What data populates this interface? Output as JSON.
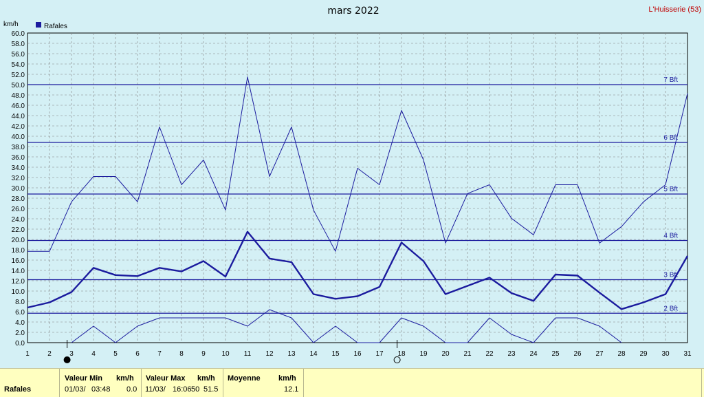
{
  "title": "mars 2022",
  "station": "L'Huisserie (53)",
  "colors": {
    "background": "#d4f0f5",
    "line": "#1b1b9e",
    "grid": "#808080",
    "station": "#c00000",
    "summary_bg": "#ffffc0"
  },
  "icons": [
    "new-moon-icon",
    "full-moon-icon"
  ],
  "chart_data": {
    "type": "line",
    "title": "mars 2022",
    "ylabel": "km/h",
    "xlabel": "",
    "ylim": [
      0,
      60
    ],
    "ytick_step": 2,
    "yticks": [
      "0.0",
      "2.0",
      "4.0",
      "6.0",
      "8.0",
      "10.0",
      "12.0",
      "14.0",
      "16.0",
      "18.0",
      "20.0",
      "22.0",
      "24.0",
      "26.0",
      "28.0",
      "30.0",
      "32.0",
      "34.0",
      "36.0",
      "38.0",
      "40.0",
      "42.0",
      "44.0",
      "46.0",
      "48.0",
      "50.0",
      "52.0",
      "54.0",
      "56.0",
      "58.0",
      "60.0"
    ],
    "x": [
      1,
      2,
      3,
      4,
      5,
      6,
      7,
      8,
      9,
      10,
      11,
      12,
      13,
      14,
      15,
      16,
      17,
      18,
      19,
      20,
      21,
      22,
      23,
      24,
      25,
      26,
      27,
      28,
      29,
      30,
      31
    ],
    "xlim": [
      1,
      31
    ],
    "grid": true,
    "legend": {
      "label": "Rafales",
      "placement": "top-left"
    },
    "series": [
      {
        "name": "Rafales",
        "style": "bold",
        "values": [
          6.8,
          7.8,
          9.8,
          14.5,
          13.1,
          12.9,
          14.5,
          13.8,
          15.8,
          12.8,
          21.5,
          16.3,
          15.6,
          9.4,
          8.5,
          9.0,
          10.8,
          19.4,
          15.8,
          9.4,
          11.0,
          12.6,
          9.6,
          8.1,
          13.2,
          13.0,
          9.7,
          6.5,
          7.8,
          9.4,
          16.8
        ]
      },
      {
        "style": "thin",
        "values": [
          17.7,
          17.7,
          27.3,
          32.2,
          32.2,
          27.3,
          41.8,
          30.6,
          35.4,
          25.7,
          51.5,
          32.2,
          41.8,
          25.7,
          17.7,
          33.8,
          30.6,
          45.0,
          35.4,
          19.3,
          28.9,
          30.6,
          24.1,
          20.9,
          30.6,
          30.6,
          19.3,
          22.5,
          27.3,
          30.6,
          48.3
        ]
      },
      {
        "style": "thin",
        "values": [
          null,
          null,
          0,
          3.2,
          0,
          3.2,
          4.8,
          4.8,
          4.8,
          4.8,
          3.2,
          6.4,
          4.8,
          0,
          3.2,
          0,
          0,
          4.8,
          3.2,
          0,
          0,
          4.8,
          1.6,
          0,
          4.8,
          4.8,
          3.2,
          0,
          null,
          null,
          null
        ]
      }
    ],
    "beaufort_lines": [
      {
        "label": "2 Bft",
        "value": 5.7
      },
      {
        "label": "3 Bft",
        "value": 12.2
      },
      {
        "label": "4 Bft",
        "value": 19.8
      },
      {
        "label": "5 Bft",
        "value": 28.8
      },
      {
        "label": "6 Bft",
        "value": 38.8
      },
      {
        "label": "7 Bft",
        "value": 50.0
      }
    ],
    "moon_phases": [
      {
        "phase": "new-moon",
        "day": 3
      },
      {
        "phase": "full-moon",
        "day": 18
      }
    ]
  },
  "summary": {
    "row_label": "Rafales",
    "min_header": "Valeur Min",
    "min_unit": "km/h",
    "min_date": "01/03/",
    "min_time": "03:48",
    "min_value": "0.0",
    "max_header": "Valeur Max",
    "max_unit": "km/h",
    "max_date": "11/03/",
    "max_time": "16:06",
    "max_digits": "50",
    "max_value": "51.5",
    "avg_header": "Moyenne",
    "avg_unit": "km/h",
    "avg_value": "12.1"
  }
}
